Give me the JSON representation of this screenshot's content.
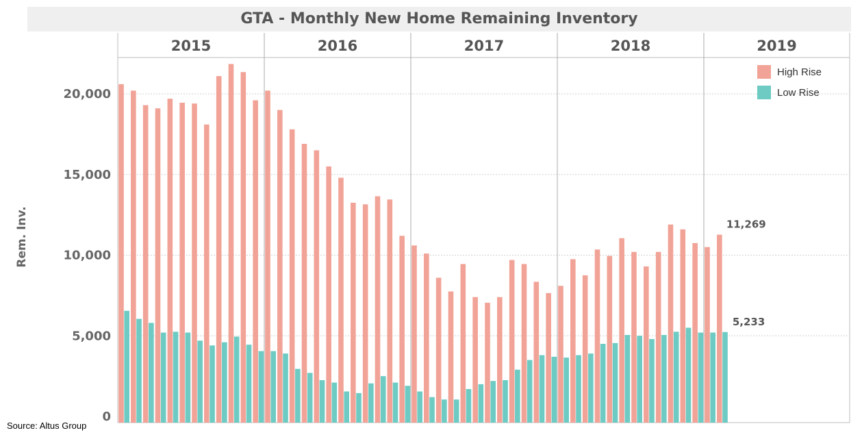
{
  "title": "GTA - Monthly New Home Remaining Inventory",
  "source": "Source: Altus Group",
  "colors": {
    "high_rise": "#f2a397",
    "low_rise": "#6dcbc3"
  },
  "legend": {
    "high_rise": "High Rise",
    "low_rise": "Low Rise"
  },
  "annotations": {
    "last_high_rise": "11,269",
    "last_low_rise": "5,233"
  },
  "chart_data": {
    "type": "bar",
    "title": "GTA - Monthly New Home Remaining Inventory",
    "ylabel": "Rem. Inv.",
    "ylim": [
      0,
      23500
    ],
    "yticks": [
      0,
      5000,
      10000,
      15000,
      20000
    ],
    "ytick_labels": [
      "0",
      "5,000",
      "10,000",
      "15,000",
      "20,000"
    ],
    "grid": true,
    "legend_position": "top-right",
    "year_panels": [
      {
        "year": "2015",
        "months": 12
      },
      {
        "year": "2016",
        "months": 12
      },
      {
        "year": "2017",
        "months": 12
      },
      {
        "year": "2018",
        "months": 12
      },
      {
        "year": "2019",
        "months": 2
      }
    ],
    "series": [
      {
        "name": "High Rise",
        "values": [
          20600,
          20200,
          19300,
          19100,
          19700,
          19450,
          19400,
          18100,
          21100,
          21850,
          21350,
          19600,
          20200,
          19000,
          17800,
          16900,
          16500,
          15500,
          14800,
          13250,
          13150,
          13650,
          13450,
          11200,
          10600,
          10100,
          8600,
          7750,
          9450,
          7400,
          7050,
          7400,
          9700,
          9450,
          8350,
          7650,
          8100,
          9750,
          8750,
          10350,
          9950,
          11050,
          10200,
          9300,
          10200,
          11900,
          11600,
          10750,
          10500,
          11269
        ]
      },
      {
        "name": "Low Rise",
        "values": [
          6550,
          6050,
          5800,
          5200,
          5250,
          5200,
          4700,
          4400,
          4600,
          4950,
          4450,
          4050,
          4050,
          3900,
          2950,
          2700,
          2250,
          2100,
          1550,
          1450,
          2050,
          2500,
          2100,
          1900,
          1550,
          1200,
          1050,
          1050,
          1700,
          2000,
          2200,
          2250,
          2900,
          3500,
          3800,
          3700,
          3650,
          3800,
          3900,
          4500,
          4550,
          5050,
          5000,
          4800,
          5050,
          5250,
          5500,
          5200,
          5200,
          5233
        ]
      }
    ]
  }
}
